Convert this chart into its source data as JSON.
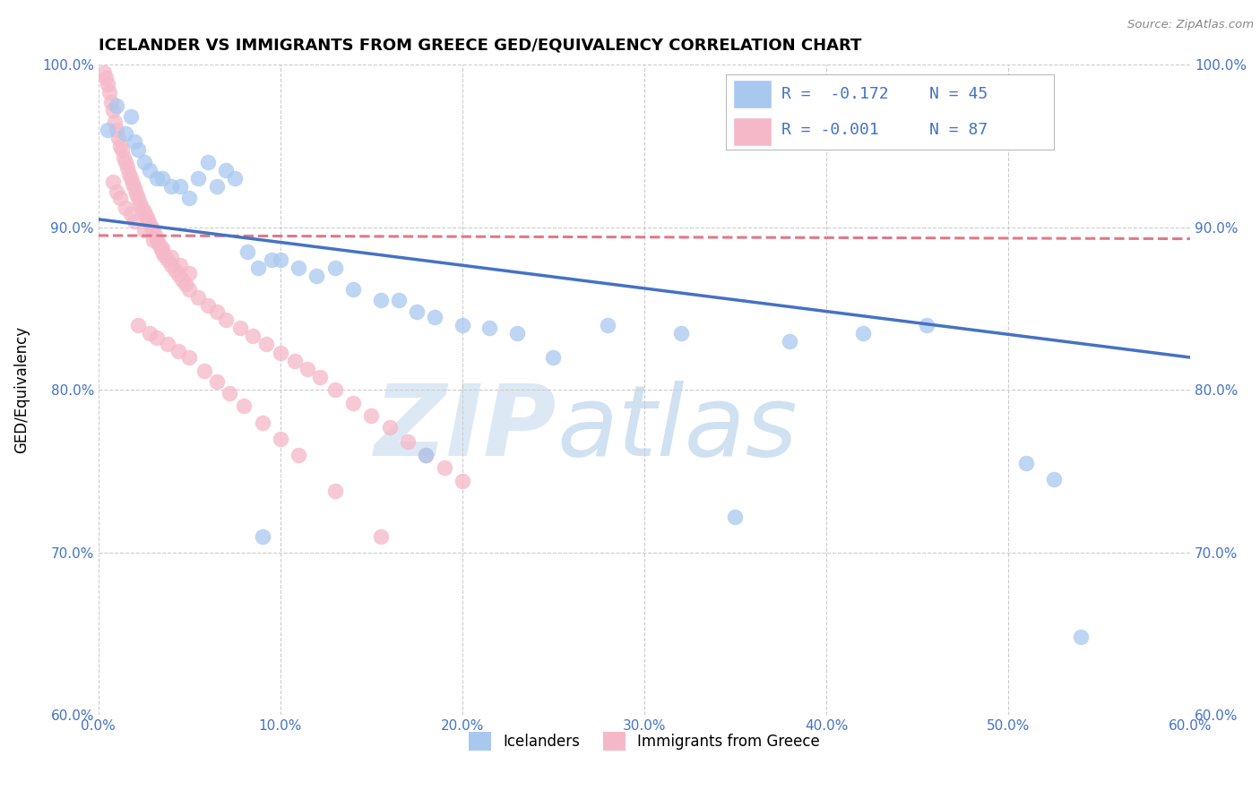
{
  "title": "ICELANDER VS IMMIGRANTS FROM GREECE GED/EQUIVALENCY CORRELATION CHART",
  "source": "Source: ZipAtlas.com",
  "ylabel": "GED/Equivalency",
  "xlim": [
    0.0,
    0.6
  ],
  "ylim": [
    0.6,
    1.0
  ],
  "xticks": [
    0.0,
    0.1,
    0.2,
    0.3,
    0.4,
    0.5,
    0.6
  ],
  "yticks": [
    0.6,
    0.7,
    0.8,
    0.9,
    1.0
  ],
  "legend_labels": [
    "Icelanders",
    "Immigrants from Greece"
  ],
  "blue_color": "#A8C8F0",
  "pink_color": "#F5B8C8",
  "blue_line_color": "#4472C4",
  "pink_line_color": "#E07888",
  "watermark_zip": "ZIP",
  "watermark_atlas": "atlas",
  "watermark_color": "#DCE9F5",
  "blue_r_text": "R =  -0.172",
  "blue_n_text": "N = 45",
  "pink_r_text": "R = -0.001",
  "pink_n_text": "N = 87",
  "blue_line_x": [
    0.0,
    0.6
  ],
  "blue_line_y": [
    0.905,
    0.82
  ],
  "pink_line_x": [
    0.0,
    0.6
  ],
  "pink_line_y": [
    0.895,
    0.893
  ],
  "blue_scatter_x": [
    0.005,
    0.01,
    0.015,
    0.018,
    0.02,
    0.022,
    0.025,
    0.028,
    0.032,
    0.035,
    0.04,
    0.045,
    0.05,
    0.055,
    0.06,
    0.065,
    0.07,
    0.075,
    0.082,
    0.088,
    0.095,
    0.1,
    0.11,
    0.12,
    0.13,
    0.14,
    0.155,
    0.165,
    0.175,
    0.185,
    0.2,
    0.215,
    0.23,
    0.28,
    0.32,
    0.38,
    0.42,
    0.455,
    0.51,
    0.525,
    0.54,
    0.18,
    0.09,
    0.25,
    0.35
  ],
  "blue_scatter_y": [
    0.96,
    0.975,
    0.958,
    0.968,
    0.953,
    0.948,
    0.94,
    0.935,
    0.93,
    0.93,
    0.925,
    0.925,
    0.918,
    0.93,
    0.94,
    0.925,
    0.935,
    0.93,
    0.885,
    0.875,
    0.88,
    0.88,
    0.875,
    0.87,
    0.875,
    0.862,
    0.855,
    0.855,
    0.848,
    0.845,
    0.84,
    0.838,
    0.835,
    0.84,
    0.835,
    0.83,
    0.835,
    0.84,
    0.755,
    0.745,
    0.648,
    0.76,
    0.71,
    0.82,
    0.722
  ],
  "pink_scatter_x": [
    0.003,
    0.004,
    0.005,
    0.006,
    0.007,
    0.008,
    0.009,
    0.01,
    0.011,
    0.012,
    0.013,
    0.014,
    0.015,
    0.016,
    0.017,
    0.018,
    0.019,
    0.02,
    0.021,
    0.022,
    0.023,
    0.024,
    0.025,
    0.026,
    0.027,
    0.028,
    0.029,
    0.03,
    0.031,
    0.032,
    0.033,
    0.034,
    0.035,
    0.036,
    0.038,
    0.04,
    0.042,
    0.044,
    0.046,
    0.048,
    0.05,
    0.055,
    0.06,
    0.065,
    0.07,
    0.078,
    0.085,
    0.092,
    0.1,
    0.108,
    0.115,
    0.122,
    0.13,
    0.14,
    0.15,
    0.16,
    0.17,
    0.18,
    0.19,
    0.2,
    0.008,
    0.01,
    0.012,
    0.015,
    0.018,
    0.02,
    0.025,
    0.03,
    0.035,
    0.04,
    0.045,
    0.05,
    0.022,
    0.028,
    0.032,
    0.038,
    0.044,
    0.05,
    0.058,
    0.065,
    0.072,
    0.08,
    0.09,
    0.1,
    0.11,
    0.13,
    0.155
  ],
  "pink_scatter_y": [
    0.995,
    0.992,
    0.988,
    0.983,
    0.977,
    0.972,
    0.965,
    0.96,
    0.955,
    0.95,
    0.948,
    0.943,
    0.94,
    0.937,
    0.933,
    0.93,
    0.927,
    0.924,
    0.921,
    0.918,
    0.915,
    0.912,
    0.91,
    0.907,
    0.905,
    0.902,
    0.9,
    0.898,
    0.895,
    0.892,
    0.89,
    0.888,
    0.885,
    0.883,
    0.88,
    0.877,
    0.874,
    0.871,
    0.868,
    0.865,
    0.862,
    0.857,
    0.852,
    0.848,
    0.843,
    0.838,
    0.833,
    0.828,
    0.823,
    0.818,
    0.813,
    0.808,
    0.8,
    0.792,
    0.784,
    0.777,
    0.768,
    0.76,
    0.752,
    0.744,
    0.928,
    0.922,
    0.918,
    0.912,
    0.908,
    0.904,
    0.898,
    0.892,
    0.887,
    0.882,
    0.877,
    0.872,
    0.84,
    0.835,
    0.832,
    0.828,
    0.824,
    0.82,
    0.812,
    0.805,
    0.798,
    0.79,
    0.78,
    0.77,
    0.76,
    0.738,
    0.71
  ]
}
